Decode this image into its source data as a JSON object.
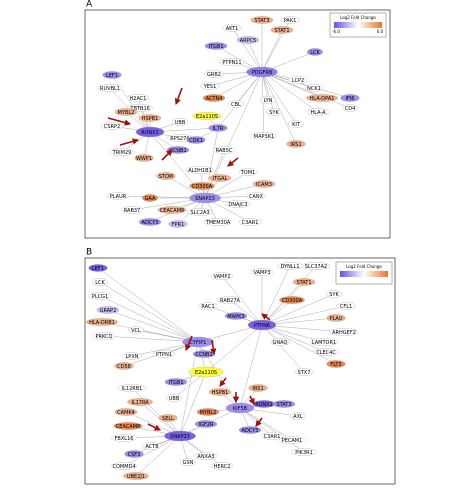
{
  "panels": [
    {
      "label": "A",
      "legend": {
        "title": "Log2 Fold Change",
        "min": "-6.0",
        "max": "6.0"
      },
      "nodes": [
        {
          "label": "PDGFRB",
          "color": "#8f7bf0"
        },
        {
          "label": "IL7R",
          "color": "#9b8cf0"
        },
        {
          "label": "RUNX1",
          "color": "#7a5ee8"
        },
        {
          "label": "SNAP23",
          "color": "#9b8cf0"
        },
        {
          "label": "E2a110S",
          "color": "#ffff33"
        },
        {
          "label": "STAT3",
          "color": "#f2b08a"
        },
        {
          "label": "PAK1",
          "color": "#ffffff"
        },
        {
          "label": "AKT1",
          "color": "#ffffff"
        },
        {
          "label": "STAT1",
          "color": "#f2b08a"
        },
        {
          "label": "ARPC5",
          "color": "#c8bdf6"
        },
        {
          "label": "ITGB1",
          "color": "#9b8cf0"
        },
        {
          "label": "LCK",
          "color": "#9b8cf0"
        },
        {
          "label": "PTPN11",
          "color": "#ffffff"
        },
        {
          "label": "GRB2",
          "color": "#ffffff"
        },
        {
          "label": "YES1",
          "color": "#ffffff"
        },
        {
          "label": "ACTN4",
          "color": "#e9874f"
        },
        {
          "label": "LCP2",
          "color": "#ffffff"
        },
        {
          "label": "NCK1",
          "color": "#ffffff"
        },
        {
          "label": "IFI6",
          "color": "#9b8cf0"
        },
        {
          "label": "CD4",
          "color": "#ffffff"
        },
        {
          "label": "HLA-DPA1",
          "color": "#f2b08a"
        },
        {
          "label": "HLA-A",
          "color": "#ffffff"
        },
        {
          "label": "KIT",
          "color": "#ffffff"
        },
        {
          "label": "MAP3K1",
          "color": "#ffffff"
        },
        {
          "label": "SYK",
          "color": "#ffffff"
        },
        {
          "label": "LYN",
          "color": "#ffffff"
        },
        {
          "label": "CBL",
          "color": "#ffffff"
        },
        {
          "label": "IRS1",
          "color": "#f2b08a"
        },
        {
          "label": "LEF1",
          "color": "#9b8cf0"
        },
        {
          "label": "RUVBL1",
          "color": "#ffffff"
        },
        {
          "label": "H2AC1",
          "color": "#ffffff"
        },
        {
          "label": "ZBTB16",
          "color": "#ffffff"
        },
        {
          "label": "HSPB1",
          "color": "#f2b08a"
        },
        {
          "label": "MYBL2",
          "color": "#f2b08a"
        },
        {
          "label": "CSRP2",
          "color": "#ffffff"
        },
        {
          "label": "TRIM29",
          "color": "#ffffff"
        },
        {
          "label": "WWP1",
          "color": "#f2b08a"
        },
        {
          "label": "UBB",
          "color": "#ffffff"
        },
        {
          "label": "RPS27A",
          "color": "#ffffff"
        },
        {
          "label": "CDK1",
          "color": "#9b8cf0"
        },
        {
          "label": "CCNB1",
          "color": "#9b8cf0"
        },
        {
          "label": "RAB5C",
          "color": "#ffffff"
        },
        {
          "label": "ALDH1B1",
          "color": "#ffffff"
        },
        {
          "label": "STOM",
          "color": "#f2b08a"
        },
        {
          "label": "ITGAL",
          "color": "#f2b08a"
        },
        {
          "label": "CD300A",
          "color": "#e9874f"
        },
        {
          "label": "GAA",
          "color": "#e9874f"
        },
        {
          "label": "CEACAM8",
          "color": "#f2b08a"
        },
        {
          "label": "TOM1",
          "color": "#ffffff"
        },
        {
          "label": "ADCY3",
          "color": "#9b8cf0"
        },
        {
          "label": "FPR1",
          "color": "#c8bdf6"
        },
        {
          "label": "RAB37",
          "color": "#ffffff"
        },
        {
          "label": "PLAUR",
          "color": "#ffffff"
        },
        {
          "label": "DNAJC3",
          "color": "#ffffff"
        },
        {
          "label": "CANX",
          "color": "#ffffff"
        },
        {
          "label": "ICAM3",
          "color": "#f2b08a"
        },
        {
          "label": "C3AR1",
          "color": "#ffffff"
        },
        {
          "label": "TMEM30A",
          "color": "#ffffff"
        },
        {
          "label": "SLC2A3",
          "color": "#ffffff"
        }
      ]
    },
    {
      "label": "B",
      "legend": {
        "title": "Log2 Fold Change"
      },
      "nodes": [
        {
          "label": "PTPN6",
          "color": "#7a5ee8"
        },
        {
          "label": "CYFIP1",
          "color": "#9b8cf0"
        },
        {
          "label": "SNAP23",
          "color": "#7a5ee8"
        },
        {
          "label": "E2a110S",
          "color": "#ffff33"
        },
        {
          "label": "KIF5B",
          "color": "#9b8cf0"
        },
        {
          "label": "LEF1",
          "color": "#7a5ee8"
        },
        {
          "label": "LCK",
          "color": "#ffffff"
        },
        {
          "label": "PLCG1",
          "color": "#ffffff"
        },
        {
          "label": "GRAP2",
          "color": "#c8bdf6"
        },
        {
          "label": "HLA-DRB1",
          "color": "#f2b08a"
        },
        {
          "label": "PRKCQ",
          "color": "#ffffff"
        },
        {
          "label": "LPXN",
          "color": "#ffffff"
        },
        {
          "label": "VAMP2",
          "color": "#ffffff"
        },
        {
          "label": "VAMP3",
          "color": "#ffffff"
        },
        {
          "label": "DYNLL1",
          "color": "#ffffff"
        },
        {
          "label": "SLC37A2",
          "color": "#ffffff"
        },
        {
          "label": "STAT1",
          "color": "#f2b08a"
        },
        {
          "label": "CD300A",
          "color": "#e9874f"
        },
        {
          "label": "RAB27A",
          "color": "#ffffff"
        },
        {
          "label": "MAPK3",
          "color": "#9b8cf0"
        },
        {
          "label": "RAC1",
          "color": "#ffffff"
        },
        {
          "label": "SYK",
          "color": "#ffffff"
        },
        {
          "label": "CFL1",
          "color": "#ffffff"
        },
        {
          "label": "PLAU",
          "color": "#f2b08a"
        },
        {
          "label": "ARHGEF2",
          "color": "#ffffff"
        },
        {
          "label": "LAMTOR1",
          "color": "#ffffff"
        },
        {
          "label": "GNAQ",
          "color": "#ffffff"
        },
        {
          "label": "CLEC4C",
          "color": "#ffffff"
        },
        {
          "label": "FLT3",
          "color": "#e9874f"
        },
        {
          "label": "STX7",
          "color": "#ffffff"
        },
        {
          "label": "VCL",
          "color": "#ffffff"
        },
        {
          "label": "CD58",
          "color": "#f2b08a"
        },
        {
          "label": "PTPN1",
          "color": "#ffffff"
        },
        {
          "label": "CCNB1",
          "color": "#9b8cf0"
        },
        {
          "label": "ITGB1",
          "color": "#9b8cf0"
        },
        {
          "label": "UBB",
          "color": "#ffffff"
        },
        {
          "label": "HSPB1",
          "color": "#f2b08a"
        },
        {
          "label": "MYBL2",
          "color": "#e9874f"
        },
        {
          "label": "IRS1",
          "color": "#f2b08a"
        },
        {
          "label": "RUNX1",
          "color": "#7a5ee8"
        },
        {
          "label": "STAT3",
          "color": "#9b8cf0"
        },
        {
          "label": "AXL",
          "color": "#ffffff"
        },
        {
          "label": "ADCY3",
          "color": "#9b8cf0"
        },
        {
          "label": "C3AR1",
          "color": "#ffffff"
        },
        {
          "label": "PECAM1",
          "color": "#ffffff"
        },
        {
          "label": "PIK3R1",
          "color": "#ffffff"
        },
        {
          "label": "IL12RB1",
          "color": "#ffffff"
        },
        {
          "label": "IL17RA",
          "color": "#f2b08a"
        },
        {
          "label": "CAMK4",
          "color": "#f2b08a"
        },
        {
          "label": "CEACAM8",
          "color": "#e9874f"
        },
        {
          "label": "FBXL16",
          "color": "#ffffff"
        },
        {
          "label": "ACTB",
          "color": "#ffffff"
        },
        {
          "label": "CSF3",
          "color": "#9b8cf0"
        },
        {
          "label": "COMMD4",
          "color": "#ffffff"
        },
        {
          "label": "UBE2J1",
          "color": "#f2b08a"
        },
        {
          "label": "GSN",
          "color": "#ffffff"
        },
        {
          "label": "ANXA3",
          "color": "#ffffff"
        },
        {
          "label": "HERC2",
          "color": "#ffffff"
        },
        {
          "label": "IGF2R",
          "color": "#9b8cf0"
        },
        {
          "label": "SELL",
          "color": "#f2b08a"
        }
      ]
    }
  ]
}
